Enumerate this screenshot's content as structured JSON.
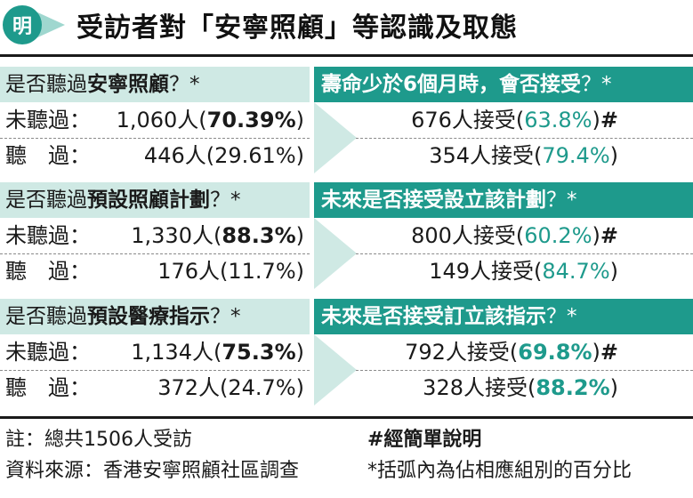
{
  "header": {
    "logo_char": "明",
    "title": "受訪者對「安寧照顧」等認識及取態"
  },
  "colors": {
    "accent": "#1e9a8c",
    "accent_light": "#cfe9e4"
  },
  "chart_data": {
    "type": "table",
    "sections": [
      {
        "question_prefix": "是否聽過",
        "question_bold": "安寧照顧",
        "question_suffix": "？*",
        "right_bold": "壽命少於6個月時，會否接受",
        "right_suffix": "？*",
        "rows": [
          {
            "label": "未聽過：",
            "count": "1,060人",
            "pct_open": "(",
            "pct": "70.39%",
            "pct_close": ")",
            "pct_bold": true,
            "accept": "676人接受",
            "accept_pct": "63.8%",
            "accept_bold": false,
            "mark": "#"
          },
          {
            "label": "聽　過：",
            "count": "446人",
            "pct_open": "(",
            "pct": "29.61%",
            "pct_close": ")",
            "pct_bold": false,
            "accept": "354人接受",
            "accept_pct": "79.4%",
            "accept_bold": false,
            "mark": ""
          }
        ]
      },
      {
        "question_prefix": "是否聽過",
        "question_bold": "預設照顧計劃",
        "question_suffix": "？*",
        "right_bold": "未來是否接受設立該計劃",
        "right_suffix": "？*",
        "rows": [
          {
            "label": "未聽過：",
            "count": "1,330人",
            "pct_open": "(",
            "pct": "88.3%",
            "pct_close": ")",
            "pct_bold": true,
            "accept": "800人接受",
            "accept_pct": "60.2%",
            "accept_bold": false,
            "mark": "#"
          },
          {
            "label": "聽　過：",
            "count": "176人",
            "pct_open": "(",
            "pct": "11.7%",
            "pct_close": ")",
            "pct_bold": false,
            "accept": "149人接受",
            "accept_pct": "84.7%",
            "accept_bold": false,
            "mark": ""
          }
        ]
      },
      {
        "question_prefix": "是否聽過",
        "question_bold": "預設醫療指示",
        "question_suffix": "？*",
        "right_bold": "未來是否接受訂立該指示",
        "right_suffix": "？*",
        "rows": [
          {
            "label": "未聽過：",
            "count": "1,134人",
            "pct_open": "(",
            "pct": "75.3%",
            "pct_close": ")",
            "pct_bold": true,
            "accept": "792人接受",
            "accept_pct": "69.8%",
            "accept_bold": true,
            "mark": "#"
          },
          {
            "label": "聽　過：",
            "count": "372人",
            "pct_open": "(",
            "pct": "24.7%",
            "pct_close": ")",
            "pct_bold": false,
            "accept": "328人接受",
            "accept_pct": "88.2%",
            "accept_bold": true,
            "mark": ""
          }
        ]
      }
    ]
  },
  "footer": {
    "note": "註：總共1506人受訪",
    "source": "資料來源：香港安寧照顧社區調查",
    "hash_note": "#經簡單說明",
    "star_note": "*括弧內為佔相應組別的百分比"
  }
}
